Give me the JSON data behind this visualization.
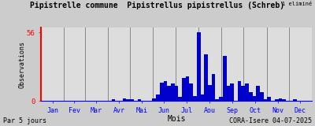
{
  "title": "Pipistrelle commune  Pipistrellus pipistrellus (Schreb)",
  "subtitle": "1 eliminé",
  "xlabel": "Mois",
  "ylabel": "Observations",
  "footer_left": "Par 5 jours",
  "footer_right": "CORA-Isere 04-07-2025",
  "ylim": [
    0,
    60
  ],
  "ytick_val": 56,
  "bar_color": "#0000cc",
  "bg_color": "#cccccc",
  "plot_bg_color": "#dddddd",
  "grid_color": "#888888",
  "month_labels": [
    "Jan",
    "Fev",
    "Mar",
    "Avr",
    "Mai",
    "Jun",
    "Jul",
    "Aou",
    "Sep",
    "Oct",
    "Nov",
    "Dec"
  ],
  "month_days": [
    31,
    28,
    31,
    30,
    31,
    30,
    31,
    31,
    30,
    31,
    30,
    31
  ],
  "values": [
    0,
    0,
    0,
    0,
    0,
    0,
    0,
    0,
    0,
    0,
    0,
    0,
    0,
    0,
    0,
    0,
    0,
    0,
    0,
    1,
    0,
    0,
    2,
    1,
    1,
    0,
    1,
    0,
    0,
    0,
    2,
    5,
    15,
    16,
    12,
    14,
    12,
    3,
    19,
    20,
    14,
    4,
    56,
    5,
    38,
    13,
    22,
    1,
    3,
    37,
    12,
    14,
    0,
    16,
    12,
    14,
    7,
    4,
    12,
    7,
    1,
    3,
    0,
    1,
    2,
    1,
    0,
    0,
    1,
    0,
    0,
    0,
    0
  ]
}
